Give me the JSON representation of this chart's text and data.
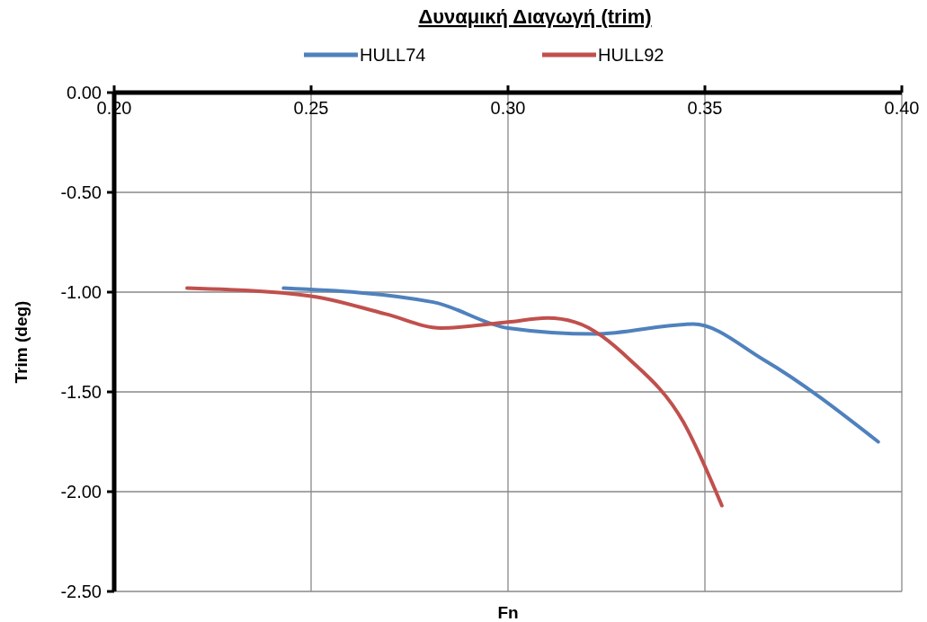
{
  "chart_data": {
    "type": "line",
    "title": "Δυναμική Διαγωγή (trim)",
    "xlabel": "Fn",
    "ylabel": "Trim  (deg)",
    "xlim": [
      0.2,
      0.4
    ],
    "xticks": [
      {
        "value": 0.2,
        "label": "0.20"
      },
      {
        "value": 0.25,
        "label": "0.25"
      },
      {
        "value": 0.3,
        "label": "0.30"
      },
      {
        "value": 0.35,
        "label": "0.35"
      },
      {
        "value": 0.4,
        "label": "0.40"
      }
    ],
    "ylim": [
      -2.5,
      0
    ],
    "yticks": [
      {
        "value": -2.5,
        "label": "-2.50"
      },
      {
        "value": -2,
        "label": "-2.00"
      },
      {
        "value": -1.5,
        "label": "-1.50"
      },
      {
        "value": -1,
        "label": "-1.00"
      },
      {
        "value": -0.5,
        "label": "-0.50"
      },
      {
        "value": 0,
        "label": "0.00"
      }
    ],
    "grid": true,
    "legend": "top",
    "line_style": "solid",
    "series": [
      {
        "name": "HULL74",
        "color": "#4f81bd",
        "x": [
          0.243,
          0.281,
          0.3,
          0.322,
          0.347,
          0.365,
          0.394
        ],
        "values": [
          -0.98,
          -1.05,
          -1.18,
          -1.21,
          -1.16,
          -1.34,
          -1.75
        ]
      },
      {
        "name": "HULL92",
        "color": "#c0504d",
        "x": [
          0.2185,
          0.25,
          0.269,
          0.283,
          0.3,
          0.31,
          0.317,
          0.331,
          0.3445,
          0.3543
        ],
        "values": [
          -0.98,
          -1.02,
          -1.11,
          -1.18,
          -1.15,
          -1.13,
          -1.15,
          -1.34,
          -1.65,
          -2.07
        ]
      }
    ]
  }
}
